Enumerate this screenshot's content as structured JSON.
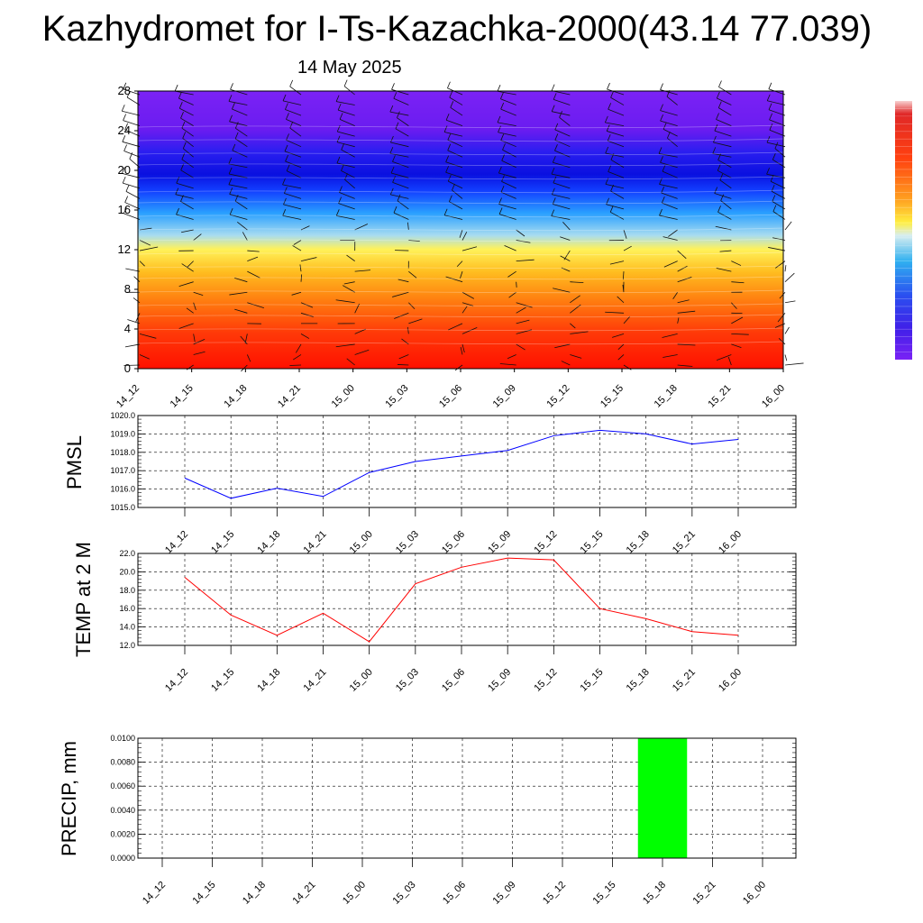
{
  "title": "Kazhydromet for I-Ts-Kazachka-2000(43.14 77.039)",
  "date": "14 May 2025",
  "time_labels": [
    "14_12",
    "14_15",
    "14_18",
    "14_21",
    "15_00",
    "15_03",
    "15_06",
    "15_09",
    "15_12",
    "15_15",
    "15_18",
    "15_21",
    "16_00"
  ],
  "chart_data": [
    {
      "type": "heatmap",
      "title": "",
      "xlabel": "",
      "ylabel": "",
      "yticks": [
        0,
        4,
        8,
        12,
        16,
        20,
        24,
        28
      ],
      "ylim": [
        0,
        28
      ],
      "colorbar": true,
      "wind_barbs": true
    },
    {
      "type": "line",
      "ylabel": "PMSL",
      "ylim": [
        1015.0,
        1020.0
      ],
      "yticks": [
        "1015.0",
        "1016.0",
        "1017.0",
        "1018.0",
        "1019.0",
        "1020.0"
      ],
      "series": [
        {
          "values": [
            1016.6,
            1015.5,
            1016.05,
            1015.6,
            1016.9,
            1017.5,
            1017.8,
            1018.1,
            1018.9,
            1019.2,
            1019.0,
            1018.45,
            1018.7
          ],
          "color": "#0000ff"
        }
      ],
      "grid": true
    },
    {
      "type": "line",
      "ylabel": "TEMP at 2 M",
      "ylim": [
        12.0,
        22.0
      ],
      "yticks": [
        "12.0",
        "14.0",
        "16.0",
        "18.0",
        "20.0",
        "22.0"
      ],
      "series": [
        {
          "values": [
            19.4,
            15.3,
            13.1,
            15.5,
            12.4,
            18.7,
            20.5,
            21.5,
            21.3,
            16.0,
            14.9,
            13.5,
            13.1
          ],
          "color": "#ff0000"
        }
      ],
      "grid": true
    },
    {
      "type": "bar",
      "ylabel": "PRECIP, mm",
      "ylim": [
        0,
        0.01
      ],
      "yticks": [
        "0.0000",
        "0.0020",
        "0.0040",
        "0.0060",
        "0.0080",
        "0.0100"
      ],
      "values": [
        0,
        0,
        0,
        0,
        0,
        0,
        0,
        0,
        0,
        0,
        0.01,
        0,
        0
      ],
      "bar_color": "#00ff00",
      "grid": true
    }
  ]
}
